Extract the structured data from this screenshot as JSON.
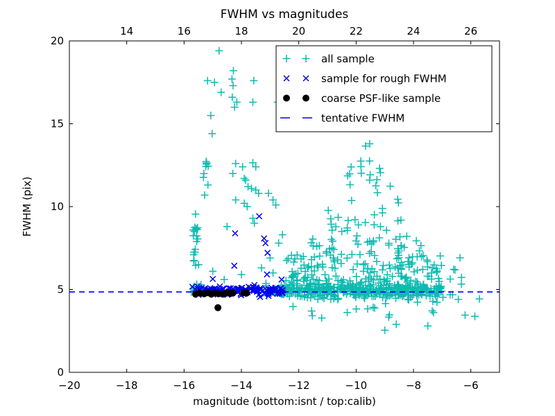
{
  "chart_data": {
    "type": "scatter",
    "title": "FWHM vs magnitudes",
    "xlabel": "magnitude (bottom:isnt / top:calib)",
    "ylabel": "FWHM (pix)",
    "xlim": [
      -20,
      -5
    ],
    "ylim": [
      0,
      20
    ],
    "x_ticks_bottom": [
      -20,
      -18,
      -16,
      -14,
      -12,
      -10,
      -8,
      -6
    ],
    "x_ticks_top_positions": [
      -18,
      -16,
      -14,
      -12,
      -10,
      -8,
      -6
    ],
    "x_ticks_top_labels": [
      14,
      16,
      18,
      20,
      22,
      24,
      26
    ],
    "y_ticks": [
      0,
      5,
      10,
      15,
      20
    ],
    "grid": false,
    "legend_position": "upper right",
    "seed": 7,
    "colors": {
      "cyan": "#0dbab0",
      "blue": "#0000ee",
      "black": "#000000",
      "frame": "#000000",
      "background": "#ffffff"
    },
    "series": [
      {
        "name": "all sample",
        "marker": "+",
        "color": "#0dbab0",
        "clusters": [
          {
            "dist": "box",
            "n": 9,
            "x": [
              -15.75,
              -15.4
            ],
            "y": [
              4.8,
              5.5
            ]
          },
          {
            "dist": "box",
            "n": 18,
            "x": [
              -15.7,
              -15.45
            ],
            "y": [
              6.4,
              8.8
            ]
          },
          {
            "dist": "box",
            "n": 10,
            "x": [
              -15.35,
              -15.15
            ],
            "y": [
              10.6,
              12.8
            ]
          },
          {
            "dist": "band",
            "n": 40,
            "x": [
              -13.15,
              -12.5
            ],
            "y_mu": 4.9,
            "y_sigma": 0.18
          },
          {
            "dist": "band",
            "n": 270,
            "x": [
              -12.5,
              -7.1
            ],
            "y_mu": 4.85,
            "y_sigma": 0.17
          },
          {
            "dist": "triangle",
            "n": 340,
            "x": [
              -12.45,
              -7.0
            ],
            "peak": -9.6,
            "y_base": 5.05,
            "y_max": 14.3,
            "p": 2.3,
            "t_min": 0.22
          },
          {
            "dist": "box",
            "n": 26,
            "x": [
              -8.2,
              -6.3
            ],
            "y": [
              4.2,
              7.3
            ]
          },
          {
            "dist": "box",
            "n": 16,
            "x": [
              -11.6,
              -6.9
            ],
            "y": [
              3.3,
              4.55
            ]
          }
        ],
        "points": [
          [
            -14.78,
            19.4
          ],
          [
            -14.28,
            18.2
          ],
          [
            -14.33,
            17.7
          ],
          [
            -15.18,
            17.6
          ],
          [
            -13.57,
            17.6
          ],
          [
            -14.94,
            17.5
          ],
          [
            -14.29,
            17.3
          ],
          [
            -14.71,
            16.9
          ],
          [
            -14.32,
            16.6
          ],
          [
            -14.16,
            16.3
          ],
          [
            -13.6,
            16.3
          ],
          [
            -12.74,
            16.3
          ],
          [
            -14.24,
            16.0
          ],
          [
            -15.07,
            15.5
          ],
          [
            -15.02,
            14.4
          ],
          [
            -14.2,
            12.6
          ],
          [
            -13.96,
            12.4
          ],
          [
            -13.6,
            12.65
          ],
          [
            -13.5,
            12.4
          ],
          [
            -14.3,
            12.0
          ],
          [
            -13.9,
            11.7
          ],
          [
            -13.85,
            11.6
          ],
          [
            -13.77,
            11.2
          ],
          [
            -13.65,
            11.1
          ],
          [
            -13.5,
            11.0
          ],
          [
            -13.4,
            10.8
          ],
          [
            -14.2,
            10.4
          ],
          [
            -13.9,
            10.2
          ],
          [
            -13.8,
            10.0
          ],
          [
            -13.06,
            10.8
          ],
          [
            -12.9,
            10.4
          ],
          [
            -12.8,
            10.1
          ],
          [
            -15.6,
            9.55
          ],
          [
            -14.5,
            8.8
          ],
          [
            -13.6,
            9.3
          ],
          [
            -13.55,
            9.0
          ],
          [
            -12.57,
            8.3
          ],
          [
            -12.7,
            7.8
          ],
          [
            -13.0,
            6.9
          ],
          [
            -13.3,
            6.3
          ],
          [
            -12.9,
            6.0
          ],
          [
            -14.0,
            5.9
          ],
          [
            -14.6,
            5.6
          ],
          [
            -15.0,
            6.1
          ],
          [
            -12.2,
            3.97
          ],
          [
            -11.2,
            3.28
          ],
          [
            -9.0,
            2.54
          ],
          [
            -8.6,
            2.9
          ],
          [
            -7.5,
            2.8
          ],
          [
            -6.2,
            3.45
          ],
          [
            -5.86,
            3.38
          ],
          [
            -5.7,
            4.43
          ]
        ]
      },
      {
        "name": "sample for rough FWHM",
        "marker": "x",
        "color": "#0000ee",
        "clusters": [
          {
            "dist": "band",
            "n": 135,
            "x": [
              -15.72,
              -12.55
            ],
            "y_mu": 4.95,
            "y_sigma": 0.13
          }
        ],
        "points": [
          [
            -13.38,
            9.42
          ],
          [
            -14.22,
            8.39
          ],
          [
            -13.21,
            8.08
          ],
          [
            -13.16,
            7.8
          ],
          [
            -13.09,
            7.21
          ],
          [
            -14.25,
            6.43
          ],
          [
            -15.0,
            5.63
          ],
          [
            -13.11,
            5.91
          ],
          [
            -13.35,
            4.55
          ],
          [
            -12.6,
            5.6
          ]
        ]
      },
      {
        "name": "coarse PSF-like sample",
        "marker": "circle",
        "color": "#000000",
        "clusters": [],
        "points": [
          [
            -15.6,
            4.72
          ],
          [
            -15.45,
            4.78
          ],
          [
            -15.3,
            4.74
          ],
          [
            -15.18,
            4.8
          ],
          [
            -15.05,
            4.72
          ],
          [
            -14.92,
            4.78
          ],
          [
            -14.8,
            4.74
          ],
          [
            -14.65,
            4.72
          ],
          [
            -14.52,
            4.78
          ],
          [
            -14.38,
            4.76
          ],
          [
            -14.3,
            4.78
          ],
          [
            -13.92,
            4.8
          ],
          [
            -13.82,
            4.78
          ],
          [
            -14.82,
            3.9
          ]
        ]
      },
      {
        "name": "tentative FWHM",
        "marker": "dashed-line",
        "color": "#0000ee",
        "line_y": 4.85
      }
    ]
  }
}
